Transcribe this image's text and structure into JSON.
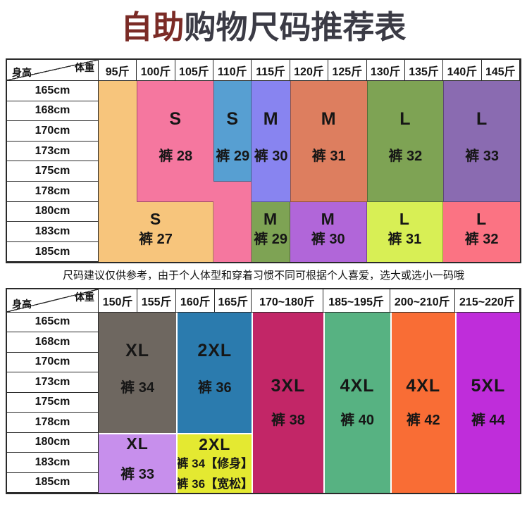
{
  "title": {
    "highlight": "自助",
    "rest": "购物尺码推荐表"
  },
  "note": "尺码建议仅供参考，由于个人体型和穿着习惯不同可根据个人喜爱，选大或选小一码哦",
  "colors": {
    "title_highlight": "#7B2B26",
    "title_text": "#3B3B45",
    "grid_line": "#2A2A2A",
    "t1_orange": "#F7C57C",
    "t1_pink": "#F5779F",
    "t1_blue": "#579FD2",
    "t1_periwinkle": "#8884F0",
    "t1_salmon": "#DD7E5F",
    "t1_olive": "#7EA354",
    "t1_purple": "#8A6BB1",
    "t1_orchid": "#B166D9",
    "t1_yellowgreen": "#D8EF55",
    "t1_pinkred": "#FB7383",
    "t2_gray": "#6E6760",
    "t2_blue": "#2B7BAE",
    "t2_lightpurple": "#C78FEC",
    "t2_yellow": "#E4E931",
    "t2_magenta": "#C22667",
    "t2_green": "#57B282",
    "t2_orange": "#F96D35",
    "t2_purple": "#BF2DDA"
  },
  "table1": {
    "corner": {
      "top_right": "体重",
      "bottom_left": "身高"
    },
    "weights": [
      "95斤",
      "100斤",
      "105斤",
      "110斤",
      "115斤",
      "120斤",
      "125斤",
      "130斤",
      "135斤",
      "140斤",
      "145斤"
    ],
    "heights": [
      "165cm",
      "168cm",
      "170cm",
      "173cm",
      "175cm",
      "178cm",
      "180cm",
      "183cm",
      "185cm"
    ],
    "separator": {
      "color": "rgba(0,0,0,0.33)",
      "width": 1
    },
    "regions": [
      {
        "name": "region-s-pants27-ext",
        "color": "t1_orange",
        "col": [
          2,
          3
        ],
        "row": [
          1,
          7
        ],
        "band": "top",
        "size": null,
        "pants": null,
        "borders": []
      },
      {
        "name": "region-s-pants27-tall",
        "color": "t1_orange",
        "col": [
          2,
          5
        ],
        "row": [
          7,
          10
        ],
        "band": "bottom",
        "size": "S",
        "pants": "裤 27",
        "borders": [
          "right"
        ]
      },
      {
        "name": "region-s-pants28",
        "color": "t1_pink",
        "col": [
          3,
          5
        ],
        "row": [
          1,
          7
        ],
        "band": "top",
        "size": "S",
        "pants": "裤 28",
        "borders": [
          "left",
          "bottom"
        ]
      },
      {
        "name": "region-s-pants28-ext",
        "color": "t1_pink",
        "col": [
          5,
          6
        ],
        "row": [
          6,
          10
        ],
        "band": "top",
        "size": null,
        "pants": null,
        "borders": [
          "right"
        ]
      },
      {
        "name": "region-s-pants29",
        "color": "t1_blue",
        "col": [
          5,
          6
        ],
        "row": [
          1,
          6
        ],
        "band": "top",
        "size": "S",
        "pants": "裤 29",
        "borders": [
          "left",
          "right",
          "bottom"
        ]
      },
      {
        "name": "region-m-pants30",
        "color": "t1_periwinkle",
        "col": [
          6,
          7
        ],
        "row": [
          1,
          7
        ],
        "band": "top",
        "size": "M",
        "pants": "裤 30",
        "borders": [
          "bottom"
        ]
      },
      {
        "name": "region-m-pants29-tall",
        "color": "t1_olive",
        "col": [
          6,
          7
        ],
        "row": [
          7,
          10
        ],
        "band": "bottom",
        "size": "M",
        "pants": "裤 29",
        "borders": [
          "right"
        ]
      },
      {
        "name": "region-m-pants31",
        "color": "t1_salmon",
        "col": [
          7,
          9
        ],
        "row": [
          1,
          7
        ],
        "band": "top",
        "size": "M",
        "pants": "裤 31",
        "borders": [
          "left",
          "bottom"
        ]
      },
      {
        "name": "region-m-pants30-tall",
        "color": "t1_orchid",
        "col": [
          7,
          9
        ],
        "row": [
          7,
          10
        ],
        "band": "bottom",
        "size": "M",
        "pants": "裤 30",
        "borders": [
          "right"
        ]
      },
      {
        "name": "region-l-pants32",
        "color": "t1_olive",
        "col": [
          9,
          11
        ],
        "row": [
          1,
          7
        ],
        "band": "top",
        "size": "L",
        "pants": "裤 32",
        "borders": [
          "left",
          "bottom"
        ]
      },
      {
        "name": "region-l-pants31-tall",
        "color": "t1_yellowgreen",
        "col": [
          9,
          11
        ],
        "row": [
          7,
          10
        ],
        "band": "bottom",
        "size": "L",
        "pants": "裤 31",
        "borders": [
          "right"
        ]
      },
      {
        "name": "region-l-pants33",
        "color": "t1_purple",
        "col": [
          11,
          13
        ],
        "row": [
          1,
          7
        ],
        "band": "top",
        "size": "L",
        "pants": "裤 33",
        "borders": [
          "left",
          "bottom"
        ]
      },
      {
        "name": "region-l-pants32-tall",
        "color": "t1_pinkred",
        "col": [
          11,
          13
        ],
        "row": [
          7,
          10
        ],
        "band": "bottom",
        "size": "L",
        "pants": "裤 32",
        "borders": []
      }
    ]
  },
  "table2": {
    "corner": {
      "top_right": "体重",
      "bottom_left": "身高"
    },
    "weights": [
      "150斤",
      "155斤",
      "160斤",
      "165斤",
      "170~180斤",
      "185~195斤",
      "200~210斤",
      "215~220斤"
    ],
    "heights": [
      "165cm",
      "168cm",
      "170cm",
      "173cm",
      "175cm",
      "178cm",
      "180cm",
      "183cm",
      "185cm"
    ],
    "separator": {
      "color": "#FFFFFF",
      "width": 2
    },
    "regions": [
      {
        "name": "region-xl-pants34",
        "color": "t2_gray",
        "col": [
          2,
          4
        ],
        "row": [
          1,
          7
        ],
        "band": "top",
        "size": "XL",
        "pants": "裤 34",
        "borders": []
      },
      {
        "name": "region-xl-pants33-tall",
        "color": "t2_lightpurple",
        "col": [
          2,
          4
        ],
        "row": [
          7,
          10
        ],
        "band": "bottom",
        "size": "XL",
        "pants": "裤 33",
        "borders": [
          "top"
        ]
      },
      {
        "name": "region-2xl-pants36",
        "color": "t2_blue",
        "col": [
          4,
          6
        ],
        "row": [
          1,
          7
        ],
        "band": "top",
        "size": "2XL",
        "pants": "裤 36",
        "borders": [
          "left"
        ]
      },
      {
        "name": "region-2xl-pants34-36-tall",
        "color": "t2_yellow",
        "col": [
          4,
          6
        ],
        "row": [
          7,
          10
        ],
        "band": "bottom",
        "cls": "compact",
        "size": "2XL",
        "pants": [
          "裤 34【修身】",
          "裤 36【宽松】"
        ],
        "borders": [
          "left",
          "top"
        ]
      },
      {
        "name": "region-3xl-pants38",
        "color": "t2_magenta",
        "col": [
          6,
          7
        ],
        "row": [
          1,
          10
        ],
        "band": "full",
        "size": "3XL",
        "pants": "裤 38",
        "borders": [
          "left"
        ]
      },
      {
        "name": "region-4xl-pants40",
        "color": "t2_green",
        "col": [
          7,
          8
        ],
        "row": [
          1,
          10
        ],
        "band": "full",
        "size": "4XL",
        "pants": "裤 40",
        "borders": [
          "left"
        ]
      },
      {
        "name": "region-4xl-pants42",
        "color": "t2_orange",
        "col": [
          8,
          9
        ],
        "row": [
          1,
          10
        ],
        "band": "full",
        "size": "4XL",
        "pants": "裤 42",
        "borders": [
          "left"
        ]
      },
      {
        "name": "region-5xl-pants44",
        "color": "t2_purple",
        "col": [
          9,
          10
        ],
        "row": [
          1,
          10
        ],
        "band": "full",
        "size": "5XL",
        "pants": "裤 44",
        "borders": [
          "left"
        ]
      }
    ]
  }
}
